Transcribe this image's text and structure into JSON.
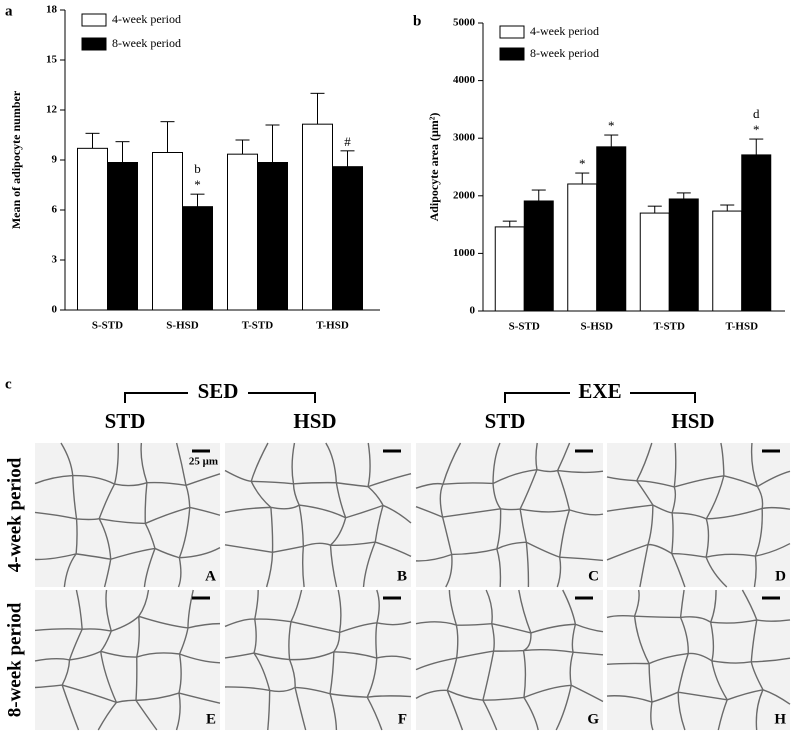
{
  "chart_data": [
    {
      "type": "bar",
      "panel_label": "a",
      "y_label": "Mean of adipocyte number",
      "categories": [
        "S-STD",
        "S-HSD",
        "T-STD",
        "T-HSD"
      ],
      "series": [
        {
          "name": "4-week period",
          "color": "#ffffff",
          "values": [
            9.7,
            9.45,
            9.35,
            11.15
          ],
          "errors": [
            0.9,
            1.85,
            0.85,
            1.85
          ],
          "annotations": [
            null,
            null,
            null,
            null
          ]
        },
        {
          "name": "8-week period",
          "color": "#000000",
          "values": [
            8.85,
            6.2,
            8.85,
            8.6
          ],
          "errors": [
            1.25,
            0.75,
            2.25,
            0.95
          ],
          "annotations": [
            null,
            [
              "b",
              "*"
            ],
            null,
            [
              "#"
            ]
          ]
        }
      ],
      "ylim": [
        0,
        18
      ],
      "yticks": [
        0,
        3,
        6,
        9,
        12,
        15,
        18
      ]
    },
    {
      "type": "bar",
      "panel_label": "b",
      "y_label": "Adipocyte area (μm²)",
      "categories": [
        "S-STD",
        "S-HSD",
        "T-STD",
        "T-HSD"
      ],
      "series": [
        {
          "name": "4-week period",
          "color": "#ffffff",
          "values": [
            1460,
            2205,
            1700,
            1735
          ],
          "errors": [
            100,
            190,
            120,
            105
          ],
          "annotations": [
            null,
            [
              "*"
            ],
            null,
            null
          ]
        },
        {
          "name": "8-week period",
          "color": "#000000",
          "values": [
            1910,
            2850,
            1945,
            2710
          ],
          "errors": [
            190,
            205,
            105,
            275
          ],
          "annotations": [
            null,
            [
              "*"
            ],
            null,
            [
              "d",
              "*"
            ]
          ]
        }
      ],
      "ylim": [
        0,
        5000
      ],
      "yticks": [
        0,
        1000,
        2000,
        3000,
        4000,
        5000
      ]
    }
  ],
  "panel_c": {
    "label": "c",
    "groups": [
      "SED",
      "EXE"
    ],
    "columns": [
      "STD",
      "HSD",
      "STD",
      "HSD"
    ],
    "rows": [
      "4-week period",
      "8-week period"
    ],
    "scale_bar": "25 μm",
    "image_labels": [
      "A",
      "B",
      "C",
      "D",
      "E",
      "F",
      "G",
      "H"
    ]
  }
}
